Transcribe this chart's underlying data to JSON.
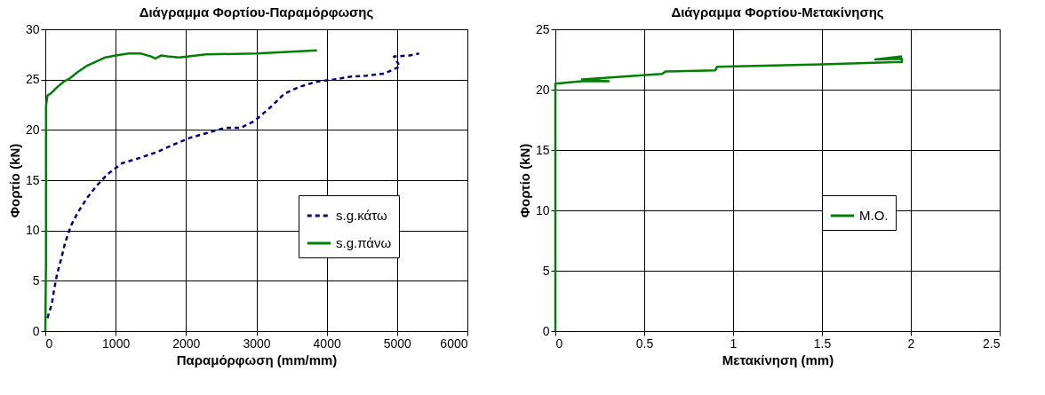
{
  "chart_data": [
    {
      "type": "line",
      "title": "Διάγραμμα Φορτίου-Παραμόρφωσης",
      "xlabel": "Παραμόρφωση (mm/mm)",
      "ylabel": "Φορτίο (kN)",
      "xlim": [
        0,
        6000
      ],
      "xticks": [
        0,
        1000,
        2000,
        3000,
        4000,
        5000,
        6000
      ],
      "ylim": [
        0,
        30
      ],
      "yticks": [
        0,
        5,
        10,
        15,
        20,
        25,
        30
      ],
      "grid": true,
      "legend": "right",
      "marker": "none",
      "series": [
        {
          "name": "s.g.κάτω",
          "color": "#000080",
          "line_style": "dashed",
          "x": [
            30,
            93,
            122,
            168,
            227,
            282,
            366,
            463,
            590,
            724,
            884,
            1095,
            1335,
            1587,
            1810,
            2050,
            2303,
            2556,
            2779,
            2977,
            3208,
            3398,
            3621,
            3861,
            4093,
            4345,
            4577,
            4821,
            5040,
            4956,
            5179,
            5314
          ],
          "values": [
            1.3,
            2.7,
            4.0,
            5.7,
            7.2,
            8.8,
            10.5,
            11.8,
            13.2,
            14.4,
            15.6,
            16.7,
            17.2,
            17.8,
            18.5,
            19.2,
            19.7,
            20.2,
            20.2,
            20.9,
            22.3,
            23.6,
            24.3,
            24.8,
            25.0,
            25.3,
            25.4,
            25.6,
            26.3,
            27.3,
            27.4,
            27.6
          ]
        },
        {
          "name": "s.g.πάνω",
          "color": "#008000",
          "line_style": "solid",
          "x": [
            0,
            10,
            10,
            30,
            72,
            177,
            261,
            345,
            450,
            598,
            724,
            851,
            1000,
            1187,
            1356,
            1503,
            1566,
            1651,
            1735,
            1903,
            2282,
            2998,
            3861
          ],
          "values": [
            0,
            7.1,
            22.4,
            23.4,
            23.6,
            24.3,
            24.8,
            25.1,
            25.7,
            26.4,
            26.8,
            27.2,
            27.4,
            27.6,
            27.6,
            27.3,
            27.1,
            27.4,
            27.3,
            27.2,
            27.5,
            27.6,
            27.9
          ]
        }
      ]
    },
    {
      "type": "line",
      "title": "Διάγραμμα Φορτίου-Μετακίνησης",
      "xlabel": "Μετακίνηση (mm)",
      "ylabel": "Φορτίο (kN)",
      "xlim": [
        0,
        2.5
      ],
      "xticks": [
        0,
        0.5,
        1,
        1.5,
        2,
        2.5
      ],
      "ylim": [
        0,
        25
      ],
      "yticks": [
        0,
        5,
        10,
        15,
        20,
        25
      ],
      "grid": true,
      "legend": "right",
      "marker": "none",
      "series": [
        {
          "name": "Μ.Ο.",
          "color": "#008000",
          "line_style": "solid",
          "x": [
            0,
            0,
            0.15,
            0.3,
            0.15,
            0.6,
            0.62,
            0.9,
            0.91,
            1.5,
            1.95,
            1.95,
            1.8,
            1.95
          ],
          "values": [
            0,
            20.5,
            20.7,
            20.7,
            20.85,
            21.3,
            21.5,
            21.6,
            21.9,
            22.1,
            22.3,
            22.55,
            22.5,
            22.75
          ]
        }
      ]
    }
  ]
}
